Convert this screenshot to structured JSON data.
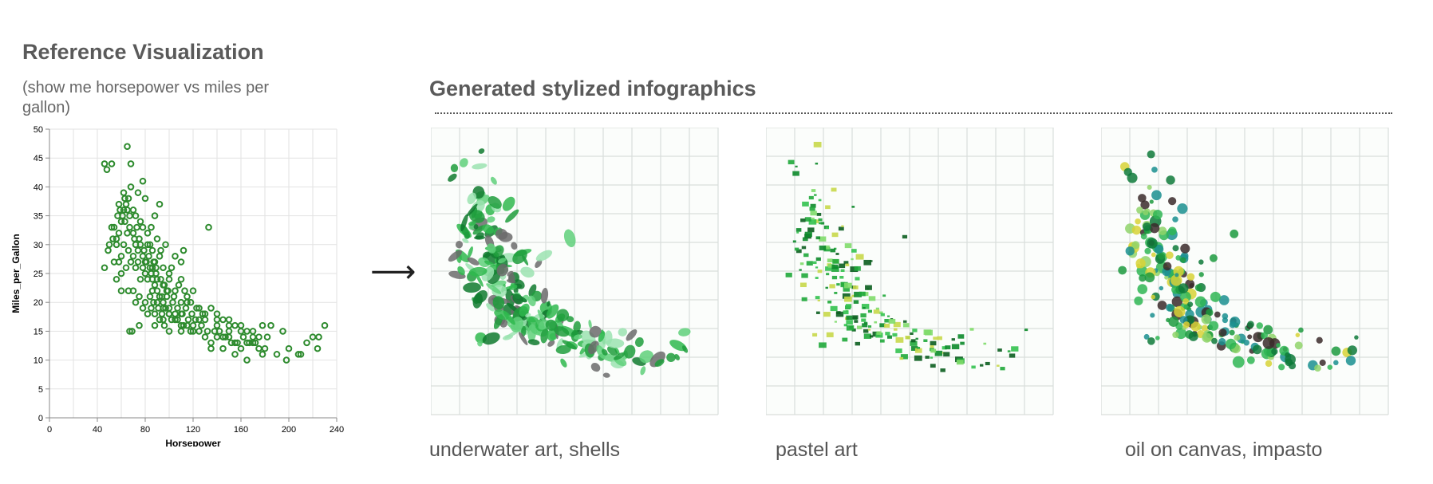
{
  "reference": {
    "title": "Reference Visualization",
    "subtitle": "(show me horsepower vs miles per gallon)"
  },
  "generated": {
    "title": "Generated stylized infographics",
    "arrow": "⟶",
    "panels": [
      {
        "caption": "underwater art, shells",
        "style": "shells",
        "palette": [
          "#1e9e3c",
          "#2fb84d",
          "#5fd07a",
          "#0f7a2e",
          "#9be3b0",
          "#6b6b6b"
        ]
      },
      {
        "caption": "pastel art",
        "style": "pastel",
        "palette": [
          "#1fa83a",
          "#33c24f",
          "#0c8a2a",
          "#7fdc6a",
          "#0b5e1f",
          "#c8d84a"
        ]
      },
      {
        "caption": "oil on canvas, impasto",
        "style": "impasto",
        "palette": [
          "#1c9a3e",
          "#2fb653",
          "#0e7a3a",
          "#d7d236",
          "#8fd36a",
          "#1a8f8f",
          "#3a2a2a"
        ]
      }
    ]
  },
  "chart_data": [
    {
      "type": "scatter",
      "title": "",
      "xlabel": "Horsepower",
      "ylabel": "Miles_per_Gallon",
      "xlim": [
        0,
        240
      ],
      "ylim": [
        0,
        50
      ],
      "xticks": [
        0,
        40,
        80,
        120,
        160,
        200,
        240
      ],
      "yticks": [
        0,
        5,
        10,
        15,
        20,
        25,
        30,
        35,
        40,
        45,
        50
      ],
      "grid": true,
      "color": "#2e8b2e",
      "points": [
        [
          46,
          44
        ],
        [
          48,
          43
        ],
        [
          52,
          44
        ],
        [
          49,
          29
        ],
        [
          53,
          31
        ],
        [
          52,
          33
        ],
        [
          54,
          33
        ],
        [
          56,
          30
        ],
        [
          58,
          27
        ],
        [
          60,
          25
        ],
        [
          62,
          39
        ],
        [
          65,
          36
        ],
        [
          67,
          35
        ],
        [
          65,
          47
        ],
        [
          68,
          44
        ],
        [
          70,
          32
        ],
        [
          72,
          30
        ],
        [
          74,
          29
        ],
        [
          75,
          31
        ],
        [
          78,
          28
        ],
        [
          80,
          27
        ],
        [
          82,
          30
        ],
        [
          84,
          26
        ],
        [
          85,
          25
        ],
        [
          86,
          24
        ],
        [
          88,
          23
        ],
        [
          90,
          22
        ],
        [
          92,
          21
        ],
        [
          94,
          21
        ],
        [
          95,
          20
        ],
        [
          97,
          19
        ],
        [
          100,
          18
        ],
        [
          102,
          17
        ],
        [
          105,
          18
        ],
        [
          107,
          17
        ],
        [
          110,
          18
        ],
        [
          112,
          16
        ],
        [
          115,
          16
        ],
        [
          118,
          15
        ],
        [
          120,
          15
        ],
        [
          125,
          15
        ],
        [
          130,
          14
        ],
        [
          133,
          33
        ],
        [
          135,
          13
        ],
        [
          140,
          14
        ],
        [
          145,
          14
        ],
        [
          150,
          14
        ],
        [
          155,
          13
        ],
        [
          160,
          12
        ],
        [
          165,
          13
        ],
        [
          170,
          13
        ],
        [
          175,
          12
        ],
        [
          180,
          12
        ],
        [
          190,
          11
        ],
        [
          198,
          10
        ],
        [
          200,
          12
        ],
        [
          208,
          11
        ],
        [
          215,
          13
        ],
        [
          220,
          14
        ],
        [
          225,
          14
        ],
        [
          230,
          16
        ],
        [
          224,
          12
        ],
        [
          210,
          11
        ],
        [
          185,
          16
        ],
        [
          178,
          16
        ],
        [
          170,
          14
        ],
        [
          160,
          16
        ],
        [
          150,
          17
        ],
        [
          140,
          17
        ],
        [
          130,
          18
        ],
        [
          125,
          19
        ],
        [
          115,
          20
        ],
        [
          110,
          24
        ],
        [
          105,
          22
        ],
        [
          100,
          25
        ],
        [
          95,
          26
        ],
        [
          92,
          28
        ],
        [
          88,
          27
        ],
        [
          86,
          29
        ],
        [
          84,
          30
        ],
        [
          82,
          32
        ],
        [
          78,
          33
        ],
        [
          76,
          34
        ],
        [
          72,
          35
        ],
        [
          70,
          36
        ],
        [
          66,
          38
        ],
        [
          64,
          37
        ],
        [
          62,
          36
        ],
        [
          60,
          34
        ],
        [
          58,
          32
        ],
        [
          56,
          31
        ],
        [
          62,
          30
        ],
        [
          66,
          29
        ],
        [
          70,
          28
        ],
        [
          74,
          27
        ],
        [
          78,
          26
        ],
        [
          82,
          24
        ],
        [
          86,
          22
        ],
        [
          90,
          20
        ],
        [
          95,
          19
        ],
        [
          100,
          18
        ],
        [
          105,
          17
        ],
        [
          110,
          16
        ],
        [
          90,
          24
        ],
        [
          95,
          23
        ],
        [
          98,
          22
        ],
        [
          80,
          25
        ],
        [
          76,
          24
        ],
        [
          72,
          26
        ],
        [
          68,
          27
        ],
        [
          64,
          26
        ],
        [
          60,
          28
        ],
        [
          70,
          22
        ],
        [
          75,
          21
        ],
        [
          80,
          20
        ],
        [
          85,
          19
        ],
        [
          88,
          18
        ],
        [
          92,
          17
        ],
        [
          96,
          16
        ],
        [
          100,
          15
        ],
        [
          110,
          15
        ],
        [
          120,
          16
        ],
        [
          130,
          17
        ],
        [
          140,
          16
        ],
        [
          150,
          15
        ],
        [
          145,
          12
        ],
        [
          155,
          11
        ],
        [
          135,
          12
        ],
        [
          165,
          10
        ],
        [
          178,
          11
        ],
        [
          182,
          14
        ],
        [
          195,
          15
        ],
        [
          46,
          26
        ],
        [
          50,
          30
        ],
        [
          67,
          15
        ],
        [
          69,
          15
        ],
        [
          75,
          16
        ],
        [
          115,
          21
        ],
        [
          120,
          22
        ],
        [
          97,
          30
        ],
        [
          105,
          28
        ],
        [
          110,
          27
        ],
        [
          112,
          29
        ],
        [
          85,
          33
        ],
        [
          88,
          35
        ],
        [
          92,
          37
        ],
        [
          80,
          38
        ],
        [
          74,
          39
        ],
        [
          68,
          40
        ],
        [
          78,
          41
        ],
        [
          58,
          37
        ],
        [
          63,
          38
        ],
        [
          67,
          33
        ],
        [
          90,
          31
        ],
        [
          93,
          29
        ],
        [
          100,
          24
        ],
        [
          102,
          26
        ],
        [
          108,
          23
        ],
        [
          113,
          22
        ],
        [
          118,
          20
        ],
        [
          123,
          19
        ],
        [
          128,
          18
        ],
        [
          135,
          19
        ],
        [
          140,
          18
        ],
        [
          145,
          17
        ],
        [
          150,
          16
        ],
        [
          155,
          16
        ],
        [
          160,
          15
        ],
        [
          165,
          15
        ],
        [
          170,
          15
        ],
        [
          175,
          14
        ],
        [
          100,
          19
        ],
        [
          95,
          17
        ],
        [
          88,
          16
        ],
        [
          82,
          18
        ],
        [
          78,
          19
        ],
        [
          72,
          20
        ],
        [
          66,
          22
        ],
        [
          60,
          22
        ],
        [
          56,
          24
        ],
        [
          54,
          27
        ],
        [
          84,
          21
        ],
        [
          87,
          20
        ],
        [
          91,
          19
        ],
        [
          94,
          18
        ],
        [
          98,
          21
        ],
        [
          103,
          20
        ],
        [
          107,
          19
        ],
        [
          111,
          18
        ],
        [
          116,
          17
        ],
        [
          122,
          17
        ],
        [
          127,
          16
        ],
        [
          132,
          15
        ],
        [
          138,
          15
        ],
        [
          142,
          15
        ],
        [
          147,
          14
        ],
        [
          152,
          13
        ],
        [
          157,
          13
        ],
        [
          162,
          14
        ],
        [
          167,
          13
        ],
        [
          172,
          13
        ],
        [
          86,
          26
        ],
        [
          89,
          25
        ],
        [
          93,
          24
        ],
        [
          96,
          23
        ],
        [
          99,
          22
        ],
        [
          104,
          21
        ],
        [
          110,
          20
        ],
        [
          114,
          19
        ],
        [
          119,
          18
        ],
        [
          125,
          17
        ],
        [
          71,
          31
        ],
        [
          73,
          33
        ],
        [
          76,
          30
        ],
        [
          79,
          29
        ],
        [
          81,
          27
        ],
        [
          83,
          28
        ],
        [
          87,
          27
        ],
        [
          89,
          26
        ],
        [
          65,
          32
        ],
        [
          63,
          34
        ],
        [
          61,
          35
        ],
        [
          59,
          36
        ],
        [
          57,
          35
        ]
      ]
    }
  ]
}
